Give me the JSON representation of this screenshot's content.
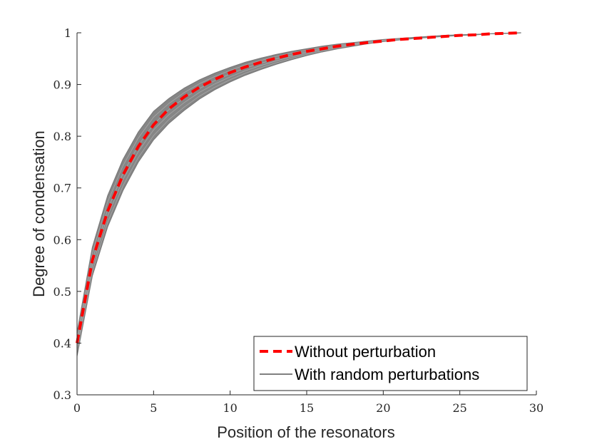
{
  "chart_data": {
    "type": "line",
    "xlabel": "Position of the resonators",
    "ylabel": "Degree of condensation",
    "xlim": [
      0,
      30
    ],
    "ylim": [
      0.3,
      1
    ],
    "xticks": [
      "0",
      "5",
      "10",
      "15",
      "20",
      "25",
      "30"
    ],
    "yticks": [
      "0.3",
      "0.4",
      "0.5",
      "0.6",
      "0.7",
      "0.8",
      "0.9",
      "1"
    ],
    "grid": false,
    "legend": {
      "placement": "bottom-right"
    },
    "x": [
      0,
      1,
      2,
      3,
      4,
      5,
      6,
      7,
      8,
      9,
      10,
      11,
      12,
      13,
      14,
      15,
      16,
      17,
      18,
      19,
      20,
      21,
      22,
      23,
      24,
      25,
      26,
      27,
      28,
      29
    ],
    "series": [
      {
        "name": "Without perturbation",
        "style": "dashed",
        "color": "#ff0000",
        "values": [
          0.4,
          0.56,
          0.655,
          0.725,
          0.78,
          0.822,
          0.853,
          0.876,
          0.895,
          0.91,
          0.923,
          0.934,
          0.943,
          0.951,
          0.958,
          0.964,
          0.969,
          0.974,
          0.978,
          0.981,
          0.984,
          0.987,
          0.989,
          0.991,
          0.993,
          0.995,
          0.996,
          0.998,
          0.999,
          1.0
        ]
      },
      {
        "name": "With random perturbations",
        "style": "solid",
        "color": "#808080",
        "band_upper": [
          0.42,
          0.585,
          0.685,
          0.755,
          0.808,
          0.848,
          0.873,
          0.893,
          0.909,
          0.922,
          0.933,
          0.943,
          0.951,
          0.958,
          0.964,
          0.969,
          0.974,
          0.978,
          0.981,
          0.984,
          0.987,
          0.989,
          0.991,
          0.993,
          0.995,
          0.996,
          0.997,
          0.998,
          0.999,
          1.0
        ],
        "band_lower": [
          0.375,
          0.53,
          0.625,
          0.695,
          0.75,
          0.793,
          0.825,
          0.85,
          0.872,
          0.89,
          0.905,
          0.918,
          0.929,
          0.939,
          0.948,
          0.956,
          0.963,
          0.969,
          0.974,
          0.979,
          0.983,
          0.986,
          0.989,
          0.991,
          0.993,
          0.995,
          0.996,
          0.998,
          0.999,
          1.0
        ]
      }
    ]
  }
}
